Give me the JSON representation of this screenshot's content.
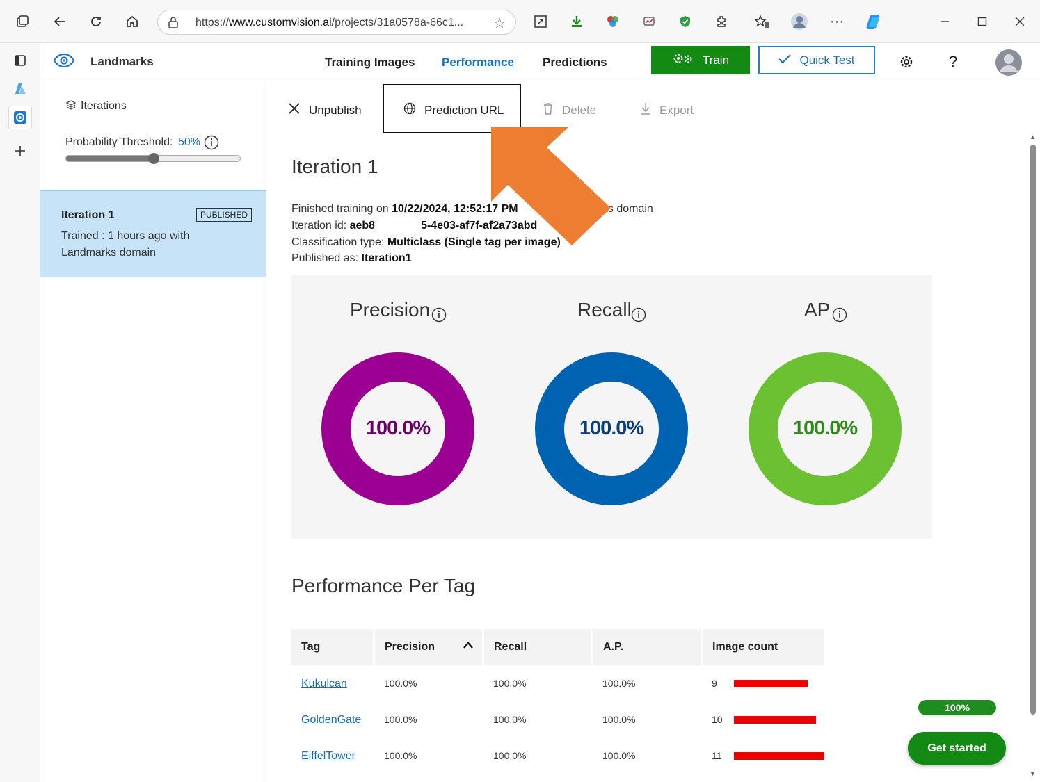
{
  "browser": {
    "url_prefix": "https://",
    "url_host": "www.customvision.ai",
    "url_rest": "/projects/31a0578a-66c1..."
  },
  "header": {
    "project_name": "Landmarks",
    "tabs": [
      "Training Images",
      "Performance",
      "Predictions"
    ],
    "train_label": "Train",
    "quick_test_label": "Quick Test",
    "help_label": "?"
  },
  "sidebar": {
    "iterations_label": "Iterations",
    "threshold_label": "Probability Threshold:",
    "threshold_value": "50%",
    "threshold_fraction": 0.5,
    "iteration": {
      "name": "Iteration 1",
      "badge": "PUBLISHED",
      "line1": "Trained : 1 hours ago with",
      "line2": "Landmarks domain"
    }
  },
  "toolbar": {
    "unpublish": "Unpublish",
    "prediction_url": "Prediction URL",
    "delete": "Delete",
    "export": "Export"
  },
  "iteration": {
    "title": "Iteration 1",
    "finished_prefix": "Finished training on",
    "finished_value": "10/22/2024, 12:52:17 PM",
    "finished_suffix": "rks domain",
    "id_prefix": "Iteration id:",
    "id_start": "aeb8",
    "id_end": "5-4e03-af7f-af2a73abd",
    "class_prefix": "Classification type:",
    "class_value": "Multiclass (Single tag per image)",
    "published_prefix": "Published as:",
    "published_value": "Iteration1"
  },
  "metrics": [
    {
      "name": "Precision",
      "value": "100.0%",
      "color": "#9b0092"
    },
    {
      "name": "Recall",
      "value": "100.0%",
      "color": "#0063b1"
    },
    {
      "name": "AP",
      "value": "100.0%",
      "color": "#6cc132"
    }
  ],
  "per_tag": {
    "title": "Performance Per Tag",
    "columns": [
      "Tag",
      "Precision",
      "Recall",
      "A.P.",
      "Image count"
    ],
    "rows": [
      {
        "tag": "Kukulcan",
        "precision": "100.0%",
        "recall": "100.0%",
        "ap": "100.0%",
        "count": "9",
        "count_num": 9
      },
      {
        "tag": "GoldenGate",
        "precision": "100.0%",
        "recall": "100.0%",
        "ap": "100.0%",
        "count": "10",
        "count_num": 10
      },
      {
        "tag": "EiffelTower",
        "precision": "100.0%",
        "recall": "100.0%",
        "ap": "100.0%",
        "count": "11",
        "count_num": 11
      }
    ]
  },
  "widgets": {
    "progress_label": "100%",
    "get_started": "Get started"
  },
  "colors": {
    "accent_green": "#138a13",
    "accent_blue": "#1d6fa5",
    "highlight_orange": "#ed7d31",
    "bar_red": "#ee0000"
  }
}
